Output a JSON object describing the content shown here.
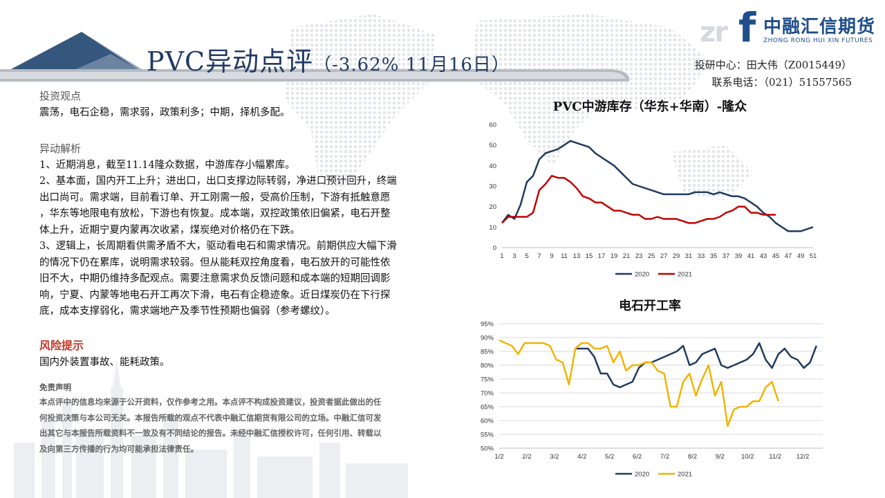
{
  "header": {
    "title": "PVC异动点评",
    "subtitle": "（-3.62% 11月16日）"
  },
  "logo": {
    "mark": "zr",
    "f": "f",
    "name_cn": "中融汇信期货",
    "name_en": "ZHONG RONG HUI XIN FUTURES"
  },
  "contact": {
    "analyst": "投研中心：田大伟（Z0015449）",
    "phone": "联系电话：（021）51557565"
  },
  "sections": {
    "view_heading": "投资观点",
    "view_text": "震荡，电石企稳，需求弱，政策利多；中期，择机多配。",
    "analysis_heading": "异动解析",
    "analysis_lines": [
      "1、近期消息，截至11.14隆众数据，中游库存小幅累库。",
      "2、基本面，国内开工上升；进出口，出口支撑边际转弱，净进口预计回升，终端",
      "出口尚可。需求端，目前看订单、开工刚需一般，受高价压制，下游有抵触意愿",
      "，华东等地限电有放松，下游也有恢复。成本端，双控政策依旧偏紧，电石开整",
      "体上升，近期宁夏内蒙再次收紧，煤炭绝对价格仍在下跌。",
      "3、逻辑上，长周期看供需矛盾不大，驱动看电石和需求情况。前期供应大幅下滑",
      "的情况下仍在累库，说明需求较弱。但从能耗双控角度看，电石放开的可能性依",
      "旧不大，中期仍维持多配观点。需要注意需求负反馈问题和成本端的短期回调影",
      "响，宁夏、内蒙等地电石开工再次下滑，电石有企稳迹象。近日煤炭仍在下行探",
      "底，成本支撑弱化，需求端地产及季节性预期也偏弱（参考螺纹）。"
    ],
    "risk_heading": "风险提示",
    "risk_text": "国内外装置事故、能耗政策。",
    "disclaimer_heading": "免责声明",
    "disclaimer_lines": [
      "本点评中的信息均来源于公开资料，仅作参考之用。本点评不构成投资建议，投资者据此做出的任",
      "何投资决策与本公司无关。本报告所载的观点不代表中融汇信期货有限公司的立场。中融汇信可发",
      "出其它与本报告所载资料不一致及有不同结论的报告。未经中融汇信授权许可，任何引用、转载以",
      "及向第三方传播的行为均可能承担法律责任。"
    ]
  },
  "chart_data": [
    {
      "type": "line",
      "title": "PVC中游库存（华东+华南）-隆众",
      "xlabel": "",
      "ylabel": "",
      "ylim": [
        0,
        60
      ],
      "yticks": [
        "0",
        "10",
        "20",
        "30",
        "40",
        "50",
        "60"
      ],
      "xticks": [
        "1",
        "3",
        "5",
        "7",
        "9",
        "11",
        "13",
        "15",
        "17",
        "19",
        "21",
        "23",
        "25",
        "27",
        "29",
        "31",
        "33",
        "35",
        "37",
        "39",
        "41",
        "43",
        "45",
        "47",
        "49",
        "51"
      ],
      "grid": false,
      "legend": "bottom",
      "colors": [
        "#1f3a5f",
        "#c00000"
      ],
      "series": [
        {
          "name": "2020",
          "x": [
            1,
            2,
            3,
            4,
            5,
            6,
            7,
            8,
            9,
            10,
            11,
            12,
            13,
            14,
            15,
            16,
            17,
            18,
            19,
            20,
            21,
            22,
            23,
            24,
            25,
            26,
            27,
            28,
            29,
            30,
            31,
            32,
            33,
            34,
            35,
            36,
            37,
            38,
            39,
            40,
            41,
            42,
            43,
            44,
            45,
            46,
            47,
            48,
            49,
            50,
            51
          ],
          "values": [
            12,
            16,
            14,
            21,
            32,
            35,
            43,
            46,
            47,
            48,
            50,
            52,
            51,
            50,
            49,
            46,
            44,
            42,
            40,
            37,
            34,
            31,
            30,
            29,
            28,
            27,
            26,
            26,
            26,
            26,
            26,
            27,
            27,
            27,
            26,
            27,
            26,
            25,
            25,
            24,
            22,
            20,
            17,
            15,
            12,
            10,
            8,
            8,
            8,
            9,
            10
          ]
        },
        {
          "name": "2021",
          "x": [
            1,
            2,
            3,
            4,
            5,
            6,
            7,
            8,
            9,
            10,
            11,
            12,
            13,
            14,
            15,
            16,
            17,
            18,
            19,
            20,
            21,
            22,
            23,
            24,
            25,
            26,
            27,
            28,
            29,
            30,
            31,
            32,
            33,
            34,
            35,
            36,
            37,
            38,
            39,
            40,
            41,
            42,
            43,
            44,
            45
          ],
          "values": [
            12,
            15,
            15,
            15,
            15,
            17,
            28,
            31,
            35,
            34,
            34,
            32,
            29,
            25,
            24,
            22,
            22,
            20,
            18,
            18,
            17,
            16,
            16,
            14,
            14,
            15,
            14,
            14,
            14,
            13,
            12,
            12,
            13,
            14,
            14,
            15,
            17,
            18,
            20,
            20,
            17,
            17,
            16,
            16,
            16
          ]
        }
      ]
    },
    {
      "type": "line",
      "title": "电石开工率",
      "xlabel": "",
      "ylabel": "",
      "ylim": [
        50,
        95
      ],
      "yticks": [
        "50%",
        "55%",
        "60%",
        "65%",
        "70%",
        "75%",
        "80%",
        "85%",
        "90%",
        "95%"
      ],
      "xticks": [
        "1/2",
        "2/2",
        "3/2",
        "4/2",
        "5/2",
        "6/2",
        "7/2",
        "8/2",
        "9/2",
        "10/2",
        "11/2",
        "12/2"
      ],
      "grid": true,
      "legend": "bottom",
      "colors": [
        "#1f3a5f",
        "#f0b400"
      ],
      "series": [
        {
          "name": "2020",
          "x": [
            13,
            14,
            15,
            16,
            17,
            18,
            19,
            20,
            21,
            22,
            23,
            24,
            25,
            26,
            27,
            28,
            29,
            30,
            31,
            32,
            33,
            34,
            35,
            36,
            37,
            38,
            39,
            40,
            41,
            42,
            43,
            44,
            45,
            46,
            47,
            48,
            49,
            50,
            51
          ],
          "values": [
            86,
            86,
            86,
            83,
            77,
            77,
            73,
            72,
            73,
            74,
            79,
            81,
            81,
            82,
            83,
            84,
            85,
            87,
            80,
            81,
            84,
            85,
            86,
            80,
            79,
            80,
            81,
            82,
            84,
            88,
            82,
            79,
            84,
            86,
            83,
            82,
            79,
            81,
            87
          ]
        },
        {
          "name": "2021",
          "x": [
            1,
            2,
            3,
            4,
            5,
            6,
            7,
            8,
            9,
            10,
            11,
            12,
            13,
            14,
            15,
            16,
            17,
            18,
            19,
            20,
            21,
            22,
            23,
            24,
            25,
            26,
            27,
            28,
            29,
            30,
            31,
            32,
            33,
            34,
            35,
            36,
            37,
            38,
            39,
            40,
            41,
            42,
            43,
            44,
            45
          ],
          "values": [
            89,
            88,
            87,
            84,
            88,
            88,
            88,
            88,
            87,
            82,
            81,
            73,
            86,
            88,
            88,
            86,
            86,
            87,
            81,
            85,
            78,
            80,
            80,
            81,
            81,
            78,
            77,
            65,
            65,
            74,
            77,
            69,
            75,
            80,
            69,
            74,
            58,
            64,
            65,
            65,
            67,
            67,
            72,
            74,
            67
          ]
        }
      ]
    }
  ]
}
